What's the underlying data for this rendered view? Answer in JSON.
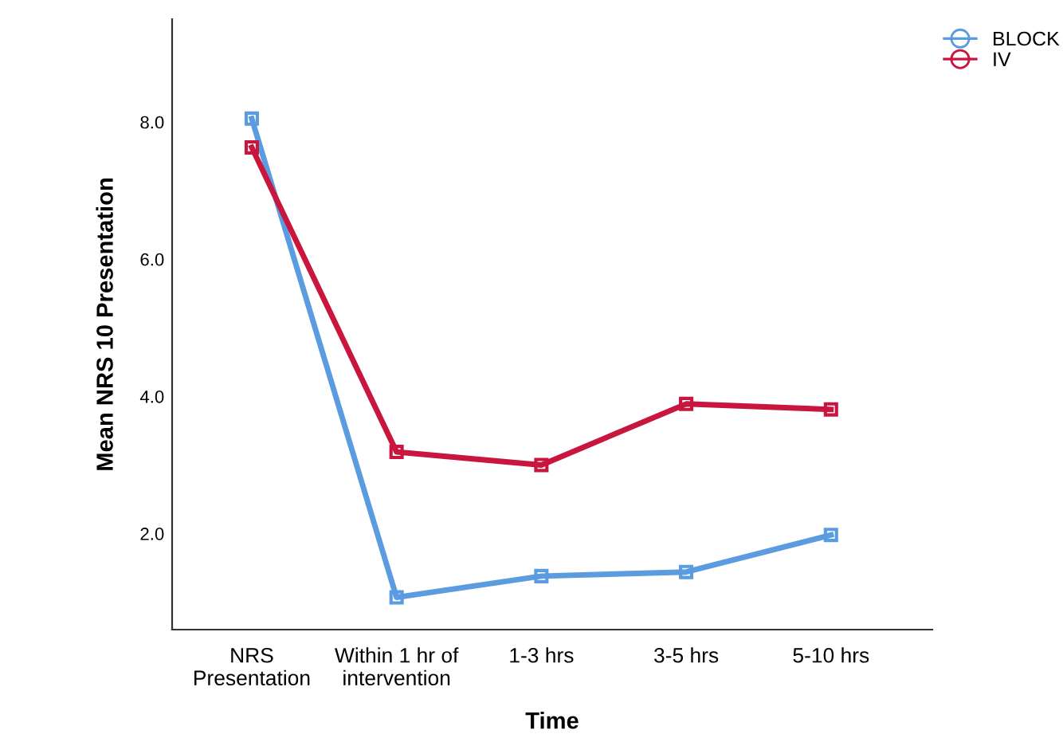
{
  "chart_data": {
    "type": "line",
    "xlabel": "Time",
    "ylabel": "Mean NRS 10 Presentation",
    "categories": [
      "NRS\nPresentation",
      "Within 1 hr of\nintervention",
      "1-3 hrs",
      "3-5 hrs",
      "5-10 hrs"
    ],
    "series": [
      {
        "name": "BLOCK",
        "color": "#5b9bdf",
        "values": [
          8.05,
          1.07,
          1.38,
          1.44,
          1.98
        ]
      },
      {
        "name": "IV",
        "color": "#c8163f",
        "values": [
          7.63,
          3.19,
          3.0,
          3.89,
          3.81
        ]
      }
    ],
    "ylim": [
      0.6,
      9.5
    ],
    "yticks": [
      {
        "value": 2,
        "label": "2.0"
      },
      {
        "value": 4,
        "label": "4.0"
      },
      {
        "value": 6,
        "label": "6.0"
      },
      {
        "value": 8,
        "label": "8.0"
      }
    ],
    "marker": "square",
    "line_style": "solid",
    "legend": "top right",
    "grid": false
  }
}
